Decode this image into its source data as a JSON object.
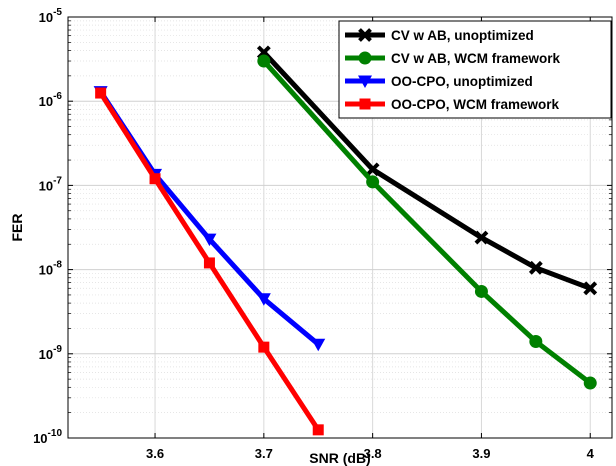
{
  "chart_data": {
    "type": "line",
    "title": "",
    "xlabel": "SNR (dB)",
    "ylabel": "FER",
    "xlim": [
      3.52,
      4.02
    ],
    "ylim_exponent": [
      -10,
      -5
    ],
    "yscale": "log",
    "grid": true,
    "legend_position": "top-right",
    "x_ticks": [
      3.6,
      3.7,
      3.8,
      3.9,
      4
    ],
    "x_tick_labels": [
      "3.6",
      "3.7",
      "3.8",
      "3.9",
      "4"
    ],
    "y_ticks": [
      -10,
      -9,
      -8,
      -7,
      -6,
      -5
    ],
    "series": [
      {
        "name": "CV w AB, unoptimized",
        "color": "#000000",
        "marker": "x",
        "x": [
          3.7,
          3.8,
          3.9,
          3.95,
          4.0
        ],
        "y": [
          3.8e-06,
          1.55e-07,
          2.4e-08,
          1.05e-08,
          6e-09
        ]
      },
      {
        "name": "CV w AB, WCM framework",
        "color": "#008000",
        "marker": "circle",
        "x": [
          3.7,
          3.8,
          3.9,
          3.95,
          4.0
        ],
        "y": [
          3e-06,
          1.1e-07,
          5.5e-09,
          1.4e-09,
          4.5e-10
        ]
      },
      {
        "name": "OO-CPO, unoptimized",
        "color": "#0000ff",
        "marker": "triangle-down",
        "x": [
          3.55,
          3.6,
          3.65,
          3.7,
          3.75
        ],
        "y": [
          1.3e-06,
          1.35e-07,
          2.3e-08,
          4.5e-09,
          1.3e-09
        ]
      },
      {
        "name": "OO-CPO, WCM framework",
        "color": "#ff0000",
        "marker": "square",
        "x": [
          3.55,
          3.6,
          3.65,
          3.7,
          3.75
        ],
        "y": [
          1.25e-06,
          1.2e-07,
          1.2e-08,
          1.2e-09,
          1.25e-10
        ]
      }
    ]
  }
}
